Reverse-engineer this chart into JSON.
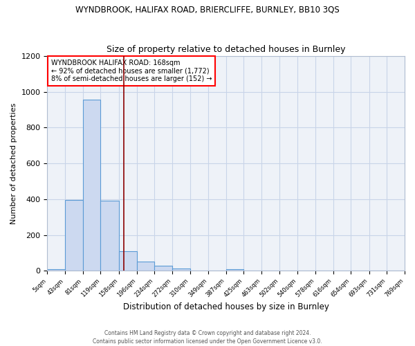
{
  "title_line1": "WYNDBROOK, HALIFAX ROAD, BRIERCLIFFE, BURNLEY, BB10 3QS",
  "title_line2": "Size of property relative to detached houses in Burnley",
  "xlabel": "Distribution of detached houses by size in Burnley",
  "ylabel": "Number of detached properties",
  "footer_line1": "Contains HM Land Registry data © Crown copyright and database right 2024.",
  "footer_line2": "Contains public sector information licensed under the Open Government Licence v3.0.",
  "annotation_line1": "WYNDBROOK HALIFAX ROAD: 168sqm",
  "annotation_line2": "← 92% of detached houses are smaller (1,772)",
  "annotation_line3": "8% of semi-detached houses are larger (152) →",
  "bar_edges": [
    5,
    43,
    81,
    119,
    158,
    196,
    234,
    272,
    310,
    349,
    387,
    425,
    463,
    502,
    540,
    578,
    616,
    654,
    693,
    731,
    769
  ],
  "bar_heights": [
    10,
    395,
    955,
    390,
    110,
    50,
    27,
    12,
    0,
    0,
    10,
    0,
    0,
    0,
    0,
    0,
    0,
    0,
    0,
    0
  ],
  "bar_color": "#ccd9f0",
  "bar_edge_color": "#5b9bd5",
  "vline_x": 168,
  "vline_color": "#8b0000",
  "ylim": [
    0,
    1200
  ],
  "yticks": [
    0,
    200,
    400,
    600,
    800,
    1000,
    1200
  ],
  "tick_labels": [
    "5sqm",
    "43sqm",
    "81sqm",
    "119sqm",
    "158sqm",
    "196sqm",
    "234sqm",
    "272sqm",
    "310sqm",
    "349sqm",
    "387sqm",
    "425sqm",
    "463sqm",
    "502sqm",
    "540sqm",
    "578sqm",
    "616sqm",
    "654sqm",
    "693sqm",
    "731sqm",
    "769sqm"
  ],
  "grid_color": "#c8d4e8",
  "bg_color": "#eef2f8",
  "annotation_box_color": "white",
  "annotation_box_edge_color": "red"
}
